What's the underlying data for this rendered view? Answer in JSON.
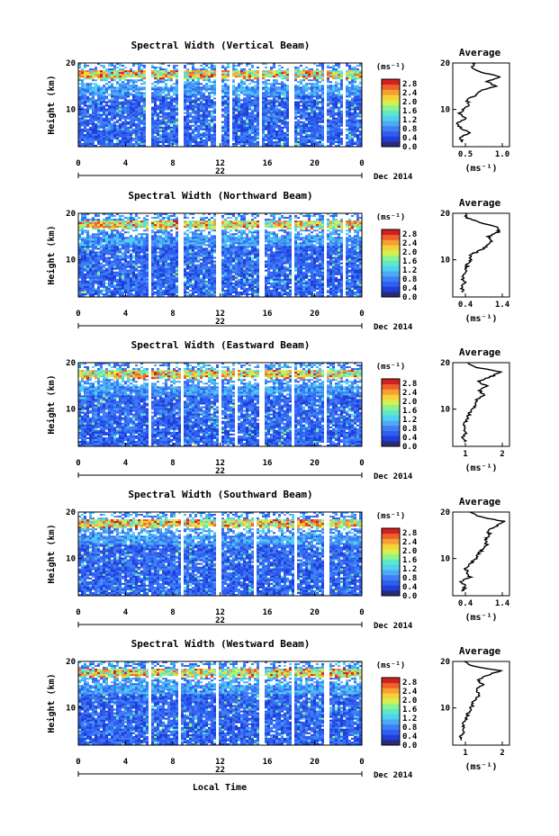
{
  "figure": {
    "xaxis_title": "Local Time",
    "date_label": "Dec 2014",
    "day_label": "22",
    "avg_title": "Average",
    "unit_label": "(ms⁻¹)"
  },
  "colors": {
    "colormap": [
      "#2a2a7a",
      "#1f3fd8",
      "#2f5ef0",
      "#3f7ff5",
      "#4faaf5",
      "#4fd2f0",
      "#5ee8c8",
      "#8ef28e",
      "#d6f050",
      "#f5d23a",
      "#f5a032",
      "#f0602a",
      "#d22020"
    ],
    "gap": "#ffffff",
    "line": "#000000"
  },
  "chart_data": [
    {
      "type": "heatmap",
      "title": "Spectral Width (Vertical Beam)",
      "ylabel": "Height (km)",
      "x_ticks": [
        "0",
        "4",
        "8",
        "12",
        "16",
        "20",
        "0"
      ],
      "y_ticks": [
        "10",
        "20"
      ],
      "xlim": [
        0,
        24
      ],
      "ylim": [
        2,
        20
      ],
      "colorbar": {
        "label": "(ms⁻¹)",
        "ticks": [
          "0.0",
          "0.4",
          "0.8",
          "1.2",
          "1.6",
          "2.0",
          "2.4",
          "2.8"
        ],
        "range": [
          0,
          3.0
        ]
      },
      "data_gaps_hours": [
        [
          5.8,
          6.2
        ],
        [
          8.4,
          8.8
        ],
        [
          11.6,
          12.0
        ],
        [
          12.8,
          13.1
        ],
        [
          15.3,
          15.6
        ],
        [
          17.9,
          18.3
        ],
        [
          20.8,
          21.1
        ],
        [
          22.5,
          22.7
        ]
      ],
      "average": {
        "xlim": [
          0.5,
          1.2
        ],
        "x_ticks": [
          "0.5",
          "1.0"
        ],
        "xlabel": "(ms⁻¹)",
        "heights": [
          3,
          4,
          5,
          6,
          7,
          8,
          9,
          10,
          11,
          12,
          13,
          14,
          15,
          16,
          17,
          18,
          19,
          20
        ],
        "values": [
          0.62,
          0.58,
          0.7,
          0.6,
          0.55,
          0.66,
          0.58,
          0.62,
          0.72,
          0.66,
          0.78,
          0.84,
          1.02,
          0.92,
          1.08,
          0.86,
          0.72,
          0.78
        ]
      }
    },
    {
      "type": "heatmap",
      "title": "Spectral Width (Northward Beam)",
      "ylabel": "Height (km)",
      "x_ticks": [
        "0",
        "4",
        "8",
        "12",
        "16",
        "20",
        "0"
      ],
      "y_ticks": [
        "10",
        "20"
      ],
      "xlim": [
        0,
        24
      ],
      "ylim": [
        2,
        20
      ],
      "colorbar": {
        "label": "(ms⁻¹)",
        "ticks": [
          "0.0",
          "0.4",
          "0.8",
          "1.2",
          "1.6",
          "2.0",
          "2.4",
          "2.8"
        ],
        "range": [
          0,
          3.0
        ]
      },
      "data_gaps_hours": [
        [
          5.9,
          6.2
        ],
        [
          8.5,
          8.8
        ],
        [
          11.7,
          12.0
        ],
        [
          15.4,
          15.7
        ],
        [
          18.0,
          18.3
        ],
        [
          20.7,
          21.0
        ],
        [
          22.4,
          22.6
        ]
      ],
      "average": {
        "xlim": [
          0.4,
          1.4
        ],
        "x_ticks": [
          "0.4",
          "1.4"
        ],
        "xlabel": "(ms⁻¹)",
        "heights": [
          3,
          4,
          5,
          6,
          7,
          8,
          9,
          10,
          11,
          12,
          13,
          14,
          15,
          16,
          17,
          18,
          19,
          20
        ],
        "values": [
          0.58,
          0.55,
          0.62,
          0.57,
          0.6,
          0.64,
          0.66,
          0.72,
          0.7,
          0.88,
          1.0,
          1.08,
          1.02,
          1.22,
          1.18,
          0.88,
          0.66,
          0.62
        ]
      }
    },
    {
      "type": "heatmap",
      "title": "Spectral Width (Eastward Beam)",
      "ylabel": "Height (km)",
      "x_ticks": [
        "0",
        "4",
        "8",
        "12",
        "16",
        "20",
        "0"
      ],
      "y_ticks": [
        "10",
        "20"
      ],
      "xlim": [
        0,
        24
      ],
      "ylim": [
        2,
        20
      ],
      "colorbar": {
        "label": "(ms⁻¹)",
        "ticks": [
          "0.0",
          "0.4",
          "0.8",
          "1.2",
          "1.6",
          "2.0",
          "2.4",
          "2.8"
        ],
        "range": [
          0,
          3.0
        ]
      },
      "data_gaps_hours": [
        [
          5.9,
          6.2
        ],
        [
          8.6,
          8.9
        ],
        [
          11.8,
          12.1
        ],
        [
          13.2,
          13.4
        ],
        [
          15.4,
          15.7
        ],
        [
          18.0,
          18.3
        ],
        [
          20.9,
          21.1
        ]
      ],
      "average": {
        "xlim": [
          0.2,
          2.2
        ],
        "x_ticks": [
          "1",
          "2"
        ],
        "xlabel": "(ms⁻¹)",
        "heights": [
          3,
          4,
          5,
          6,
          7,
          8,
          9,
          10,
          11,
          12,
          13,
          14,
          15,
          16,
          17,
          18,
          19,
          20
        ],
        "values": [
          0.62,
          0.55,
          0.66,
          0.6,
          0.64,
          0.7,
          0.78,
          0.9,
          1.0,
          1.05,
          1.3,
          1.15,
          1.4,
          1.1,
          1.55,
          1.9,
          1.0,
          0.75
        ]
      }
    },
    {
      "type": "heatmap",
      "title": "Spectral Width (Southward Beam)",
      "ylabel": "Height (km)",
      "x_ticks": [
        "0",
        "4",
        "8",
        "12",
        "16",
        "20",
        "0"
      ],
      "y_ticks": [
        "10",
        "20"
      ],
      "xlim": [
        0,
        24
      ],
      "ylim": [
        2,
        20
      ],
      "colorbar": {
        "label": "(ms⁻¹)",
        "ticks": [
          "0.0",
          "0.4",
          "0.8",
          "1.2",
          "1.6",
          "2.0",
          "2.4",
          "2.8"
        ],
        "range": [
          0,
          3.0
        ]
      },
      "data_gaps_hours": [
        [
          8.6,
          8.9
        ],
        [
          11.6,
          12.0
        ],
        [
          14.8,
          15.1
        ],
        [
          18.2,
          18.5
        ],
        [
          20.9,
          21.2
        ]
      ],
      "average": {
        "xlim": [
          0.4,
          1.4
        ],
        "x_ticks": [
          "0.4",
          "1.4"
        ],
        "xlabel": "(ms⁻¹)",
        "heights": [
          3,
          4,
          5,
          6,
          7,
          8,
          9,
          10,
          11,
          12,
          13,
          14,
          15,
          16,
          17,
          18,
          19,
          20
        ],
        "values": [
          0.58,
          0.62,
          0.55,
          0.7,
          0.66,
          0.62,
          0.72,
          0.8,
          0.86,
          0.92,
          1.0,
          0.96,
          1.06,
          1.02,
          1.18,
          1.3,
          0.88,
          0.7
        ]
      }
    },
    {
      "type": "heatmap",
      "title": "Spectral Width (Westward Beam)",
      "ylabel": "Height (km)",
      "x_ticks": [
        "0",
        "4",
        "8",
        "12",
        "16",
        "20",
        "0"
      ],
      "y_ticks": [
        "10",
        "20"
      ],
      "xlim": [
        0,
        24
      ],
      "ylim": [
        2,
        20
      ],
      "colorbar": {
        "label": "(ms⁻¹)",
        "ticks": [
          "0.0",
          "0.4",
          "0.8",
          "1.2",
          "1.6",
          "2.0",
          "2.4",
          "2.8"
        ],
        "range": [
          0,
          3.0
        ]
      },
      "data_gaps_hours": [
        [
          5.9,
          6.2
        ],
        [
          8.4,
          8.7
        ],
        [
          11.6,
          11.9
        ],
        [
          15.4,
          15.7
        ],
        [
          18.0,
          18.3
        ],
        [
          20.9,
          21.2
        ]
      ],
      "average": {
        "xlim": [
          0.4,
          2.4
        ],
        "x_ticks": [
          "1",
          "2"
        ],
        "xlabel": "(ms⁻¹)",
        "heights": [
          3,
          4,
          5,
          6,
          7,
          8,
          9,
          10,
          11,
          12,
          13,
          14,
          15,
          16,
          17,
          18,
          19,
          20
        ],
        "values": [
          0.72,
          0.68,
          0.8,
          0.76,
          0.82,
          0.9,
          0.96,
          1.05,
          1.1,
          1.2,
          1.35,
          1.25,
          1.45,
          1.3,
          1.6,
          2.1,
          1.1,
          0.8
        ]
      }
    }
  ]
}
